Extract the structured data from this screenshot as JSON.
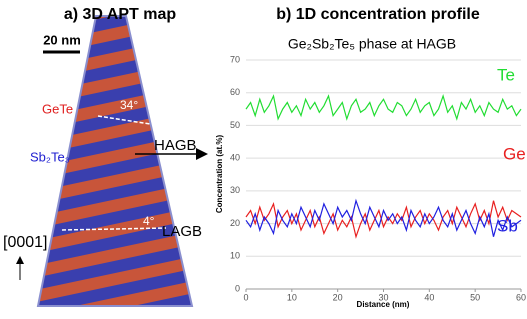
{
  "panel_a": {
    "title": "a) 3D APT map",
    "scale_bar": "20 nm",
    "phase_1": "GeTe",
    "phase_2": "Sb₂Te₃",
    "angle_1": "34°",
    "boundary_1": "HAGB",
    "angle_2": "4°",
    "boundary_2": "LAGB",
    "direction": "[0001]"
  },
  "chart_data": {
    "type": "line",
    "panel_title": "b) 1D concentration profile",
    "title": "Ge₂Sb₂Te₅ phase at HAGB",
    "x_label": "Distance (nm)",
    "y_label": "Concentration (at.%)",
    "x": [
      0,
      1,
      2,
      3,
      4,
      5,
      6,
      7,
      8,
      9,
      10,
      11,
      12,
      13,
      14,
      15,
      16,
      17,
      18,
      19,
      20,
      21,
      22,
      23,
      24,
      25,
      26,
      27,
      28,
      29,
      30,
      31,
      32,
      33,
      34,
      35,
      36,
      37,
      38,
      39,
      40,
      41,
      42,
      43,
      44,
      45,
      46,
      47,
      48,
      49,
      50,
      51,
      52,
      53,
      54,
      55,
      56,
      57,
      58,
      59,
      60
    ],
    "series": [
      {
        "name": "Te",
        "color": "#22dd33",
        "values": [
          55,
          57,
          53,
          58,
          54,
          56,
          59,
          52,
          55,
          57,
          54,
          56,
          53,
          58,
          55,
          57,
          54,
          56,
          59,
          53,
          55,
          57,
          52,
          56,
          58,
          54,
          55,
          57,
          53,
          56,
          58,
          55,
          54,
          57,
          56,
          53,
          55,
          58,
          54,
          56,
          57,
          53,
          55,
          59,
          54,
          56,
          52,
          57,
          55,
          58,
          54,
          56,
          53,
          57,
          55,
          54,
          58,
          55,
          56,
          53,
          55
        ]
      },
      {
        "name": "Ge",
        "color": "#e82020",
        "values": [
          22,
          24,
          20,
          25,
          21,
          23,
          26,
          19,
          22,
          24,
          20,
          23,
          18,
          21,
          24,
          19,
          22,
          17,
          20,
          23,
          18,
          21,
          19,
          22,
          16,
          20,
          23,
          18,
          21,
          24,
          19,
          22,
          20,
          23,
          21,
          25,
          19,
          22,
          24,
          20,
          23,
          21,
          18,
          22,
          24,
          20,
          25,
          22,
          19,
          23,
          26,
          21,
          24,
          20,
          27,
          22,
          25,
          21,
          24,
          23,
          22
        ]
      },
      {
        "name": "Sb",
        "color": "#2020e0",
        "values": [
          21,
          19,
          23,
          18,
          22,
          20,
          17,
          24,
          21,
          19,
          23,
          20,
          25,
          22,
          19,
          24,
          21,
          26,
          23,
          20,
          25,
          22,
          24,
          21,
          27,
          23,
          20,
          25,
          22,
          19,
          24,
          21,
          23,
          20,
          22,
          18,
          24,
          21,
          19,
          23,
          20,
          22,
          25,
          21,
          19,
          23,
          18,
          21,
          24,
          20,
          17,
          22,
          19,
          23,
          16,
          21,
          18,
          22,
          19,
          20,
          21
        ]
      }
    ],
    "xlim": [
      0,
      60
    ],
    "xticks": [
      0,
      10,
      20,
      30,
      40,
      50,
      60
    ],
    "ylim": [
      0,
      70
    ],
    "yticks": [
      0,
      10,
      20,
      30,
      40,
      50,
      60,
      70
    ],
    "grid": true
  }
}
